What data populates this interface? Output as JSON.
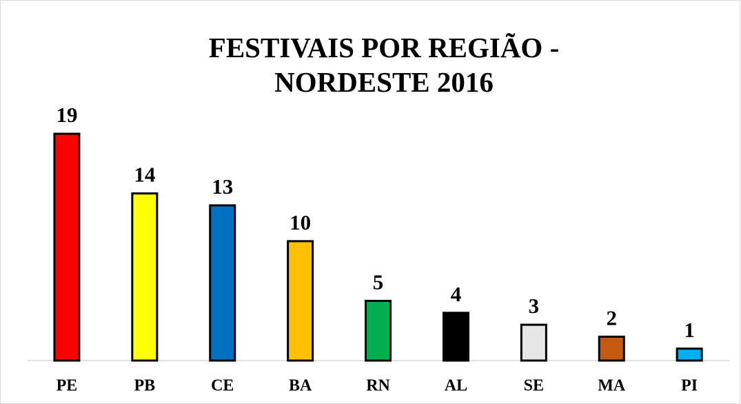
{
  "chart_data": {
    "type": "bar",
    "title": "FESTIVAIS POR REGIÃO - NORDESTE 2016",
    "categories": [
      "PE",
      "PB",
      "CE",
      "BA",
      "RN",
      "AL",
      "SE",
      "MA",
      "PI"
    ],
    "values": [
      19,
      14,
      13,
      10,
      5,
      4,
      3,
      2,
      1
    ],
    "colors": [
      "#ff0000",
      "#ffff00",
      "#0070c0",
      "#ffc000",
      "#00b050",
      "#000000",
      "#e7e6e6",
      "#c55a11",
      "#00b0f0"
    ]
  }
}
